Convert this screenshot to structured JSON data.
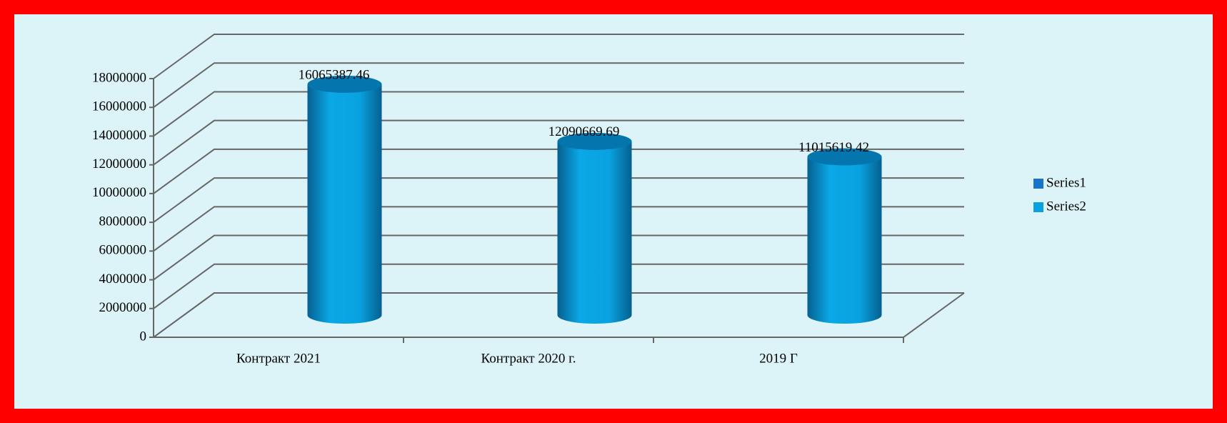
{
  "chart_data": {
    "type": "bar3d",
    "categories": [
      "Контракт 2021",
      "Контракт 2020 г.",
      "2019 Г"
    ],
    "series": [
      {
        "name": "Series1",
        "color": "#1a73c8",
        "values": [
          null,
          null,
          null
        ]
      },
      {
        "name": "Series2",
        "color": "#08a2e0",
        "values": [
          16065387.46,
          12090669.69,
          11015619.42
        ]
      }
    ],
    "ylim": [
      0,
      18000000
    ],
    "yticks": [
      0,
      2000000,
      4000000,
      6000000,
      8000000,
      10000000,
      12000000,
      14000000,
      16000000,
      18000000
    ],
    "grid": true,
    "legend": "right"
  }
}
